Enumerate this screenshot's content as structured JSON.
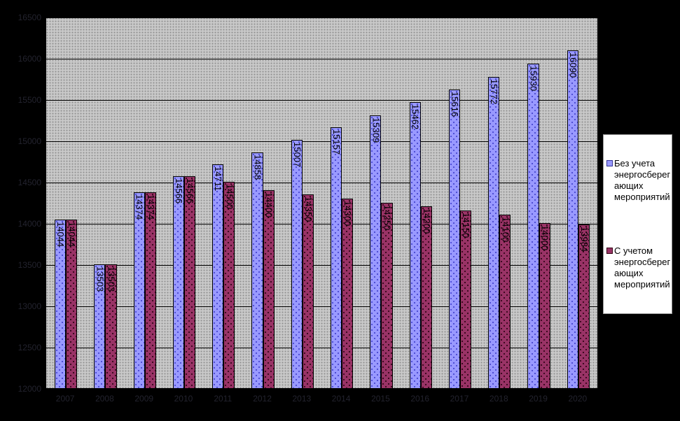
{
  "chart_data": {
    "type": "bar",
    "title": "",
    "categories": [
      "2007",
      "2008",
      "2009",
      "2010",
      "2011",
      "2012",
      "2013",
      "2014",
      "2015",
      "2016",
      "2017",
      "2018",
      "2019",
      "2020"
    ],
    "series": [
      {
        "name": "Без учета энергосберегающих мероприятий",
        "legend_lines": "Без учета\nэнергосберег\nающих\nмероприятий",
        "color": "#9999FF",
        "dot_color": "#3C3CC8",
        "marker_border": "#333399",
        "values": [
          14044,
          13503,
          14374,
          14566,
          14711,
          14858,
          15007,
          15157,
          15309,
          15462,
          15616,
          15772,
          15930,
          16090
        ]
      },
      {
        "name": "С учетом энергосберегающих мероприятий",
        "legend_lines": "С учетом\nэнергосберег\nающих\nмероприятий",
        "color": "#993366",
        "dot_color": "#26000F",
        "marker_border": "#330011",
        "values": [
          14044,
          13503,
          14374,
          14566,
          14500,
          14400,
          14350,
          14300,
          14250,
          14200,
          14150,
          14100,
          14000,
          13984
        ]
      }
    ],
    "ylim": [
      12000,
      16500
    ],
    "ytick_step": 500,
    "yticks": [
      "12000",
      "12500",
      "13000",
      "13500",
      "14000",
      "14500",
      "15000",
      "15500",
      "16000",
      "16500"
    ],
    "grid": "horizontal-only",
    "legend_position": "right",
    "data_labels": "vertical, at inside end of each bar",
    "gap_width_percent": 150
  },
  "colors": {
    "background": "#000000",
    "plot_bg": "#C8C8C8",
    "plot_dot": "#8F8F8F",
    "gridline": "#000000",
    "axis_text": "#23232E",
    "bar_label_text": "#000000",
    "legend_bg": "#FFFFFF",
    "legend_border": "#9A9A9A"
  }
}
